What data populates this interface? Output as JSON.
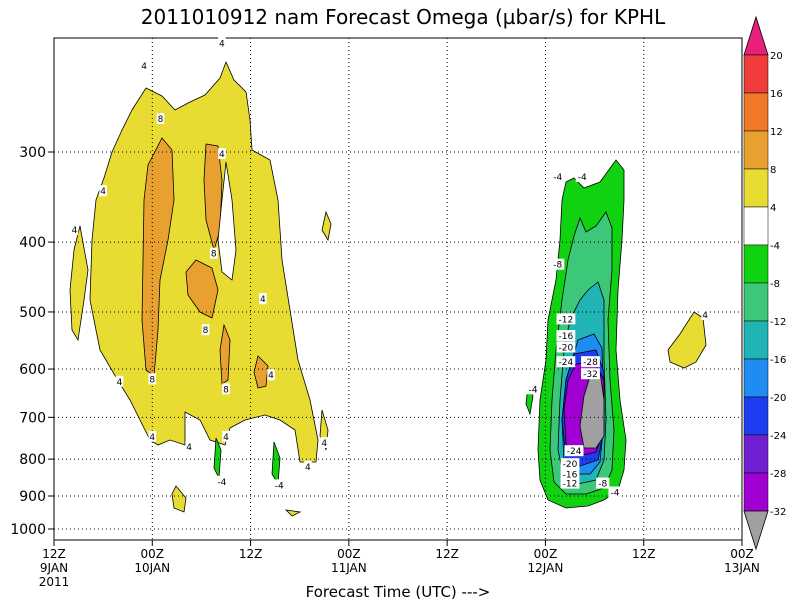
{
  "chart_data": {
    "type": "heatmap",
    "title": "2011010912 nam Forecast Omega (µbar/s) for KPHL",
    "xlabel": "Forecast Time (UTC) --->",
    "ylabel": "",
    "y_scale": "log-pressure",
    "y_ticks": [
      300,
      400,
      500,
      600,
      700,
      800,
      900,
      1000
    ],
    "x_ticks": [
      {
        "t": 0,
        "line1": "12Z",
        "line2": "9JAN",
        "line3": "2011"
      },
      {
        "t": 12,
        "line1": "00Z",
        "line2": "10JAN",
        "line3": ""
      },
      {
        "t": 24,
        "line1": "12Z",
        "line2": "",
        "line3": ""
      },
      {
        "t": 36,
        "line1": "00Z",
        "line2": "11JAN",
        "line3": ""
      },
      {
        "t": 48,
        "line1": "12Z",
        "line2": "",
        "line3": ""
      },
      {
        "t": 60,
        "line1": "00Z",
        "line2": "12JAN",
        "line3": ""
      },
      {
        "t": 72,
        "line1": "12Z",
        "line2": "",
        "line3": ""
      },
      {
        "t": 84,
        "line1": "00Z",
        "line2": "13JAN",
        "line3": ""
      }
    ],
    "x_range_hours": [
      0,
      84
    ],
    "grid": true,
    "colorbar": {
      "labels": [
        "20",
        "16",
        "12",
        "8",
        "4",
        "-4",
        "-8",
        "-12",
        "-16",
        "-20",
        "-24",
        "-28",
        "-32"
      ],
      "colors": [
        "#e8207a",
        "#f03c3c",
        "#f07828",
        "#e8a030",
        "#e8dc32",
        "#ffffff",
        "#10d210",
        "#3cc878",
        "#20b4b4",
        "#1e8cf0",
        "#1e3cf0",
        "#7020d2",
        "#a000d2",
        "#a0a0a0"
      ]
    },
    "regions": [
      {
        "name": "ascent-4",
        "level": 4,
        "color": "#e8dc32",
        "t_start": 1,
        "t_end": 33,
        "p_top": 220,
        "p_bottom": 750
      },
      {
        "name": "ascent-8",
        "level": 8,
        "color": "#e8a030",
        "t_start": 11,
        "t_end": 14,
        "p_top": 280,
        "p_bottom": 620
      },
      {
        "name": "descent-4",
        "level": -4,
        "color": "#10d210",
        "t_start": 58,
        "t_end": 67,
        "p_top": 310,
        "p_bottom": 920
      },
      {
        "name": "descent-8",
        "level": -8,
        "color": "#3cc878",
        "t_start": 60,
        "t_end": 66,
        "p_top": 360,
        "p_bottom": 890
      },
      {
        "name": "descent-12",
        "level": -12,
        "color": "#20b4b4",
        "t_start": 61,
        "t_end": 65.5,
        "p_top": 450,
        "p_bottom": 870
      },
      {
        "name": "descent-28",
        "level": -28,
        "color": "#a000d2",
        "t_start": 62,
        "t_end": 65,
        "p_top": 600,
        "p_bottom": 810
      },
      {
        "name": "descent-32",
        "level": -32,
        "color": "#a0a0a0",
        "t_start": 63.3,
        "t_end": 65,
        "p_top": 640,
        "p_bottom": 780
      },
      {
        "name": "ascent-4-late",
        "level": 4,
        "color": "#e8dc32",
        "t_start": 76,
        "t_end": 79,
        "p_top": 500,
        "p_bottom": 640
      }
    ],
    "contour_labels": [
      {
        "t": 11,
        "p": 228,
        "text": "4"
      },
      {
        "t": 20.5,
        "p": 212,
        "text": "4"
      },
      {
        "t": 2.5,
        "p": 385,
        "text": "4"
      },
      {
        "t": 6,
        "p": 340,
        "text": "4"
      },
      {
        "t": 13,
        "p": 270,
        "text": "8"
      },
      {
        "t": 20.5,
        "p": 302,
        "text": "4"
      },
      {
        "t": 19.5,
        "p": 415,
        "text": "8"
      },
      {
        "t": 25.5,
        "p": 480,
        "text": "4"
      },
      {
        "t": 18.5,
        "p": 530,
        "text": "8"
      },
      {
        "t": 8,
        "p": 625,
        "text": "4"
      },
      {
        "t": 12,
        "p": 620,
        "text": "8"
      },
      {
        "t": 21,
        "p": 640,
        "text": "8"
      },
      {
        "t": 26.5,
        "p": 612,
        "text": "4"
      },
      {
        "t": 12,
        "p": 745,
        "text": "4"
      },
      {
        "t": 16.5,
        "p": 770,
        "text": "4"
      },
      {
        "t": 21,
        "p": 745,
        "text": "4"
      },
      {
        "t": 31,
        "p": 820,
        "text": "4"
      },
      {
        "t": 33,
        "p": 760,
        "text": "4"
      },
      {
        "t": 20.5,
        "p": 860,
        "text": "-4"
      },
      {
        "t": 27.5,
        "p": 870,
        "text": "-4"
      },
      {
        "t": 79.5,
        "p": 505,
        "text": "4"
      },
      {
        "t": 61.5,
        "p": 325,
        "text": "-4"
      },
      {
        "t": 64.5,
        "p": 325,
        "text": "-4"
      },
      {
        "t": 61.5,
        "p": 430,
        "text": "-8"
      },
      {
        "t": 58.5,
        "p": 640,
        "text": "-4"
      },
      {
        "t": 62.5,
        "p": 512,
        "text": "-12"
      },
      {
        "t": 62.5,
        "p": 540,
        "text": "-16"
      },
      {
        "t": 62.5,
        "p": 560,
        "text": "-20"
      },
      {
        "t": 62.5,
        "p": 587,
        "text": "-24"
      },
      {
        "t": 65.5,
        "p": 587,
        "text": "-28"
      },
      {
        "t": 65.5,
        "p": 610,
        "text": "-32"
      },
      {
        "t": 63.5,
        "p": 780,
        "text": "-24"
      },
      {
        "t": 63,
        "p": 813,
        "text": "-20"
      },
      {
        "t": 63,
        "p": 840,
        "text": "-16"
      },
      {
        "t": 63,
        "p": 865,
        "text": "-12"
      },
      {
        "t": 67,
        "p": 865,
        "text": "-8"
      },
      {
        "t": 68.5,
        "p": 890,
        "text": "-4"
      }
    ]
  }
}
